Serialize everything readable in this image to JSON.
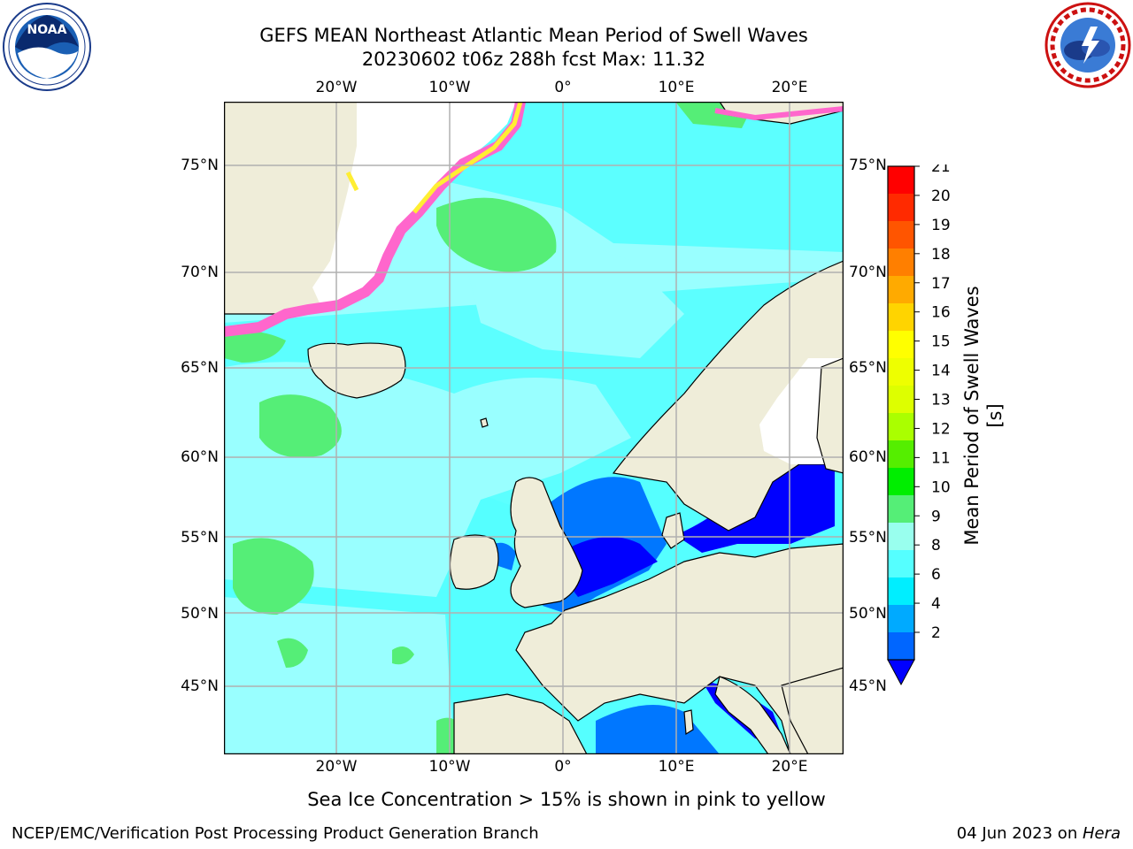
{
  "header": {
    "title_line1": "GEFS MEAN Northeast Atlantic Mean Period of Swell Waves",
    "title_line2": "20230602 t06z 288h fcst   Max: 11.32"
  },
  "logos": {
    "left": {
      "icon": "noaa-logo",
      "text": "NOAA",
      "ring_text": "NATIONAL OCEANIC AND ATMOSPHERIC ADMINISTRATION · U.S. DEPARTMENT OF COMMERCE"
    },
    "right": {
      "icon": "nws-logo",
      "ring_text": "NATIONAL WEATHER SERVICE"
    }
  },
  "axes": {
    "lon_labels": [
      "20°W",
      "10°W",
      "0°",
      "10°E",
      "20°E"
    ],
    "lat_labels": [
      "75°N",
      "70°N",
      "65°N",
      "60°N",
      "55°N",
      "50°N",
      "45°N"
    ]
  },
  "colorbar": {
    "label": "Mean Period of Swell Waves [s]",
    "ticks": [
      "21",
      "20",
      "19",
      "18",
      "17",
      "16",
      "15",
      "14",
      "13",
      "12",
      "11",
      "10",
      "9",
      "8",
      "6",
      "4",
      "2"
    ],
    "colors": [
      "#ff0000",
      "#ff2a00",
      "#ff5500",
      "#ff7f00",
      "#ffaa00",
      "#ffd400",
      "#ffff00",
      "#eeff00",
      "#ddff00",
      "#aaff00",
      "#55ee00",
      "#00ee00",
      "#55ee77",
      "#99ffee",
      "#55ffff",
      "#00eeff",
      "#00aaff",
      "#0066ff"
    ],
    "extend_color": "#0000ff"
  },
  "colors": {
    "land": "#efedd9",
    "ocean_base": "#99ffff",
    "ocean_shelf": "#55ffff",
    "swell_green": "#55ee77",
    "swell_blue": "#0077ff",
    "swell_darkblue": "#0000ff",
    "ice_pink": "#ff66cc",
    "ice_yellow": "#ffee33",
    "grid": "#b0b0b0"
  },
  "note": "Sea Ice Concentration > 15% is shown in pink to yellow",
  "footer": {
    "left": "NCEP/EMC/Verification Post Processing Product Generation Branch",
    "right_date": "04 Jun 2023 on ",
    "right_host": "Hera"
  }
}
